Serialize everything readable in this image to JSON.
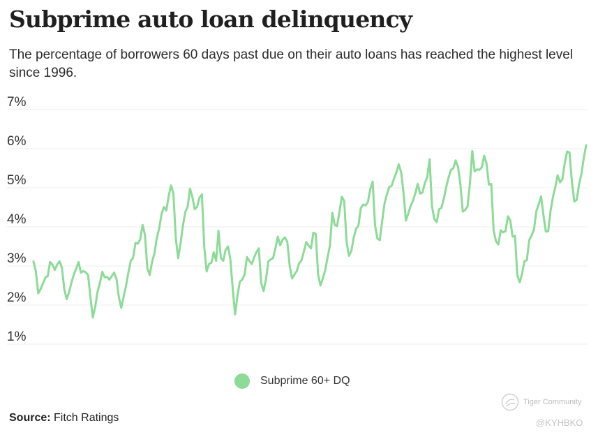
{
  "title": "Subprime auto loan delinquency",
  "subtitle": "The percentage of borrowers 60 days past due on their auto loans has reached the highest level since 1996.",
  "source": {
    "label": "Source:",
    "value": "Fitch Ratings"
  },
  "watermark": {
    "community": "Tiger Community",
    "handle": "@KYHBKO"
  },
  "colors": {
    "series": "#8cdb97",
    "grid": "#eeeeee",
    "text": "#222222"
  },
  "chart_data": {
    "type": "line",
    "title": "Subprime auto loan delinquency",
    "ylabel": "",
    "xlabel": "",
    "ylim": [
      1,
      7
    ],
    "yticks": [
      "7%",
      "6%",
      "5%",
      "4%",
      "3%",
      "2%",
      "1%"
    ],
    "ytick_values": [
      7,
      6,
      5,
      4,
      3,
      2,
      1
    ],
    "grid": true,
    "legend_position": "bottom-center",
    "series": [
      {
        "name": "Subprime 60+ DQ",
        "color": "#8cdb97",
        "values": [
          3.12,
          2.86,
          2.3,
          2.41,
          2.55,
          2.7,
          2.74,
          3.1,
          3.03,
          2.9,
          3.04,
          3.12,
          2.95,
          2.4,
          2.15,
          2.33,
          2.57,
          2.78,
          2.93,
          3.1,
          2.83,
          2.87,
          2.84,
          2.77,
          2.21,
          1.68,
          1.95,
          2.34,
          2.56,
          2.85,
          2.71,
          2.72,
          2.65,
          2.74,
          2.83,
          2.67,
          2.2,
          1.93,
          2.21,
          2.49,
          2.83,
          3.13,
          3.21,
          3.59,
          3.57,
          3.68,
          4.05,
          3.79,
          2.94,
          2.77,
          3.11,
          3.32,
          3.72,
          3.96,
          4.33,
          4.51,
          4.42,
          4.79,
          5.06,
          4.85,
          3.7,
          3.2,
          3.58,
          4.03,
          4.38,
          4.52,
          4.98,
          4.76,
          4.45,
          4.52,
          4.75,
          4.83,
          3.48,
          2.86,
          3.05,
          3.08,
          3.35,
          3.13,
          3.9,
          3.21,
          3.13,
          3.41,
          3.5,
          3.17,
          2.42,
          1.76,
          2.24,
          2.6,
          2.65,
          2.78,
          3.23,
          3.13,
          3.05,
          3.21,
          3.36,
          3.45,
          2.56,
          2.36,
          2.65,
          3.11,
          3.17,
          3.2,
          3.45,
          3.75,
          3.53,
          3.67,
          3.73,
          3.62,
          3.01,
          2.68,
          2.78,
          2.87,
          3.07,
          3.14,
          3.37,
          3.61,
          3.52,
          3.45,
          3.85,
          3.82,
          2.78,
          2.5,
          2.68,
          2.9,
          3.22,
          3.53,
          4.36,
          4.05,
          4.02,
          4.39,
          4.77,
          4.66,
          3.61,
          3.26,
          3.38,
          3.72,
          3.95,
          4.03,
          4.48,
          4.57,
          4.55,
          4.64,
          4.97,
          5.16,
          4.04,
          3.7,
          3.66,
          4.14,
          4.6,
          4.83,
          5.02,
          5.05,
          5.24,
          5.39,
          5.6,
          5.4,
          4.88,
          4.16,
          4.34,
          4.53,
          4.67,
          4.86,
          5.1,
          4.85,
          4.88,
          5.12,
          5.27,
          5.73,
          4.53,
          4.2,
          4.12,
          4.45,
          4.49,
          4.72,
          5.02,
          5.26,
          5.46,
          5.5,
          5.7,
          5.53,
          5.07,
          4.39,
          4.43,
          4.52,
          5.11,
          5.94,
          5.42,
          5.47,
          5.46,
          5.52,
          5.82,
          5.62,
          5.08,
          5.1,
          3.91,
          3.63,
          3.55,
          3.91,
          3.86,
          3.89,
          4.27,
          4.17,
          3.75,
          3.77,
          2.76,
          2.58,
          2.81,
          3.12,
          3.15,
          3.66,
          3.78,
          3.93,
          4.4,
          4.58,
          4.78,
          4.3,
          3.88,
          3.89,
          4.41,
          4.76,
          5.02,
          5.32,
          5.14,
          5.22,
          5.64,
          5.93,
          5.9,
          5.16,
          4.65,
          4.69,
          5.08,
          5.35,
          5.76,
          6.09
        ]
      }
    ]
  }
}
